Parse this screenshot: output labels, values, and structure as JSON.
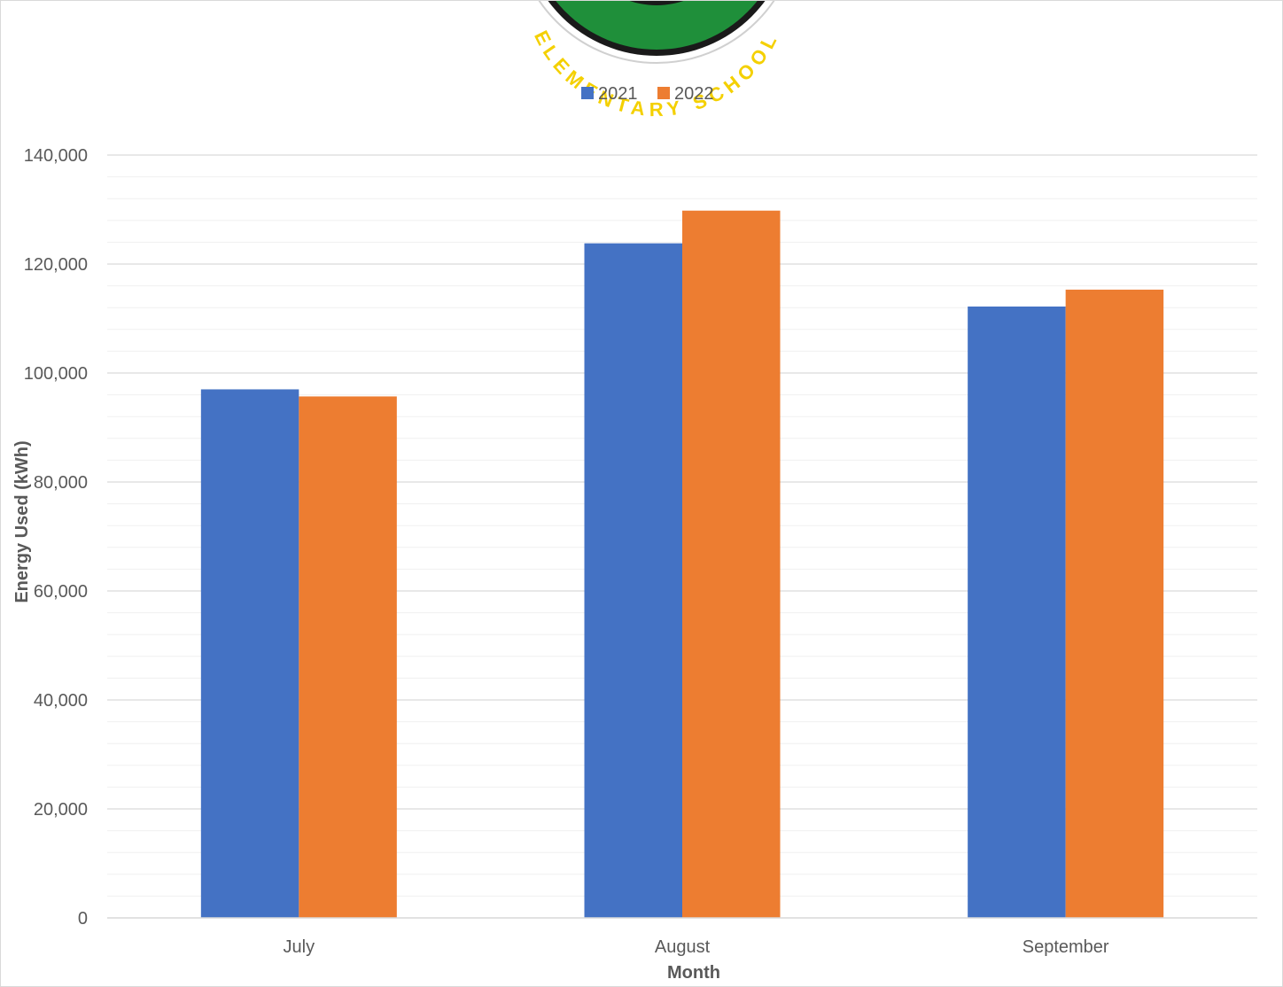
{
  "logo": {
    "text": "ELEMENTARY SCHOOL",
    "ring_color": "#1a1a1a",
    "fill_color": "#1f8f3a",
    "text_color": "#f4d000"
  },
  "chart_data": {
    "type": "bar",
    "categories": [
      "July",
      "August",
      "September"
    ],
    "series": [
      {
        "name": "2021",
        "values": [
          97000,
          123800,
          112200
        ],
        "color": "#4472c4"
      },
      {
        "name": "2022",
        "values": [
          95700,
          129800,
          115300
        ],
        "color": "#ed7d31"
      }
    ],
    "xlabel": "Month",
    "ylabel": "Energy Used (kWh)",
    "ylim": [
      0,
      140000
    ],
    "major_tick_step": 20000,
    "minor_tick_step": 4000,
    "y_tick_labels": [
      "0",
      "20,000",
      "40,000",
      "60,000",
      "80,000",
      "100,000",
      "120,000",
      "140,000"
    ],
    "grid": true,
    "legend_position": "top-center"
  }
}
